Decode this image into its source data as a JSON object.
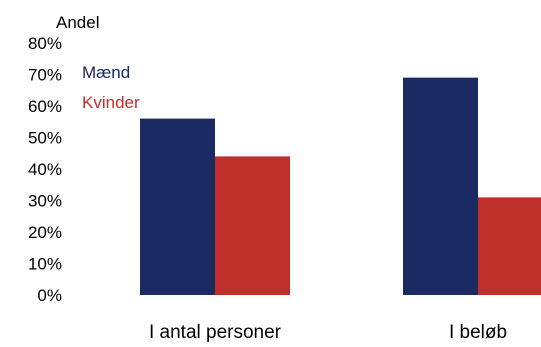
{
  "chart_data": {
    "type": "bar",
    "ylabel": "Andel",
    "categories": [
      "I antal personer",
      "I beløb"
    ],
    "series": [
      {
        "name": "Mænd",
        "color": "#1b2a63",
        "values": [
          56,
          69
        ]
      },
      {
        "name": "Kvinder",
        "color": "#c0302a",
        "values": [
          44,
          31
        ]
      }
    ],
    "ylim": [
      0,
      80
    ],
    "yticks": [
      "0%",
      "10%",
      "20%",
      "30%",
      "40%",
      "50%",
      "60%",
      "70%",
      "80%"
    ],
    "grid": false,
    "legend_position": "top-left"
  }
}
